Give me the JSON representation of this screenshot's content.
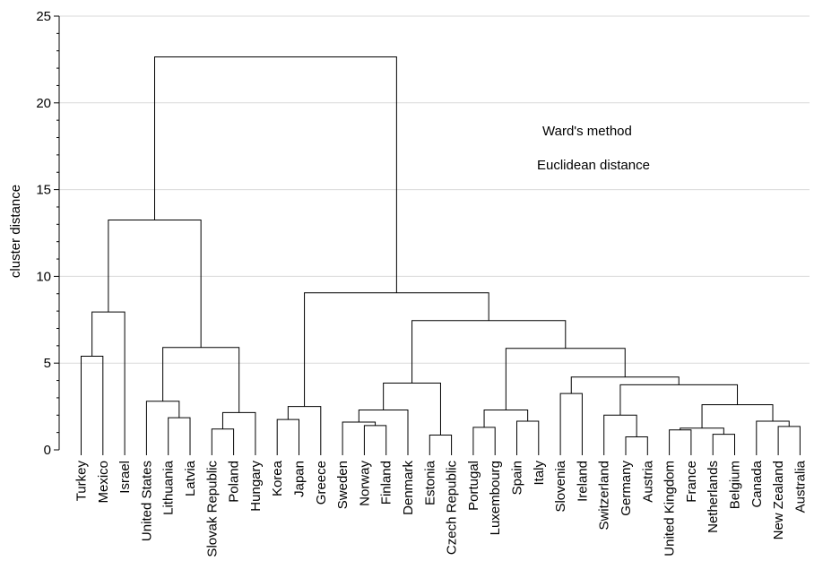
{
  "chart_data": {
    "type": "dendrogram",
    "ylabel": "cluster distance",
    "ylim": [
      0,
      25
    ],
    "yticks": [
      0,
      5,
      10,
      15,
      20,
      25
    ],
    "grid": true,
    "annotations": [
      "Ward's method",
      "Euclidean distance"
    ],
    "leaves": [
      "Turkey",
      "Mexico",
      "Israel",
      "United States",
      "Lithuania",
      "Latvia",
      "Slovak Republic",
      "Poland",
      "Hungary",
      "Korea",
      "Japan",
      "Greece",
      "Sweden",
      "Norway",
      "Finland",
      "Denmark",
      "Estonia",
      "Czech Republic",
      "Portugal",
      "Luxembourg",
      "Spain",
      "Italy",
      "Slovenia",
      "Ireland",
      "Switzerland",
      "Germany",
      "Austria",
      "United Kingdom",
      "France",
      "Netherlands",
      "Belgium",
      "Canada",
      "New Zealand",
      "Australia"
    ],
    "merges": [
      {
        "id": "a",
        "left": "Turkey",
        "right": "Mexico",
        "height": 5.4
      },
      {
        "id": "b",
        "left": "a",
        "right": "Israel",
        "height": 7.95
      },
      {
        "id": "c",
        "left": "Lithuania",
        "right": "Latvia",
        "height": 1.85
      },
      {
        "id": "d",
        "left": "United States",
        "right": "c",
        "height": 2.8
      },
      {
        "id": "e",
        "left": "Slovak Republic",
        "right": "Poland",
        "height": 1.2
      },
      {
        "id": "f",
        "left": "e",
        "right": "Hungary",
        "height": 2.15
      },
      {
        "id": "g",
        "left": "d",
        "right": "f",
        "height": 5.9
      },
      {
        "id": "h",
        "left": "b",
        "right": "g",
        "height": 13.25
      },
      {
        "id": "i",
        "left": "Korea",
        "right": "Japan",
        "height": 1.75
      },
      {
        "id": "j",
        "left": "i",
        "right": "Greece",
        "height": 2.5
      },
      {
        "id": "k",
        "left": "Norway",
        "right": "Finland",
        "height": 1.4
      },
      {
        "id": "l",
        "left": "Sweden",
        "right": "k",
        "height": 1.6
      },
      {
        "id": "m",
        "left": "l",
        "right": "Denmark",
        "height": 2.3
      },
      {
        "id": "n",
        "left": "Estonia",
        "right": "Czech Republic",
        "height": 0.85
      },
      {
        "id": "o",
        "left": "m",
        "right": "n",
        "height": 3.85
      },
      {
        "id": "p",
        "left": "Portugal",
        "right": "Luxembourg",
        "height": 1.3
      },
      {
        "id": "q",
        "left": "Spain",
        "right": "Italy",
        "height": 1.65
      },
      {
        "id": "r",
        "left": "p",
        "right": "q",
        "height": 2.3
      },
      {
        "id": "s",
        "left": "Slovenia",
        "right": "Ireland",
        "height": 3.25
      },
      {
        "id": "t",
        "left": "Germany",
        "right": "Austria",
        "height": 0.75
      },
      {
        "id": "u",
        "left": "Switzerland",
        "right": "t",
        "height": 2.0
      },
      {
        "id": "v",
        "left": "United Kingdom",
        "right": "France",
        "height": 1.15
      },
      {
        "id": "w",
        "left": "Netherlands",
        "right": "Belgium",
        "height": 0.9
      },
      {
        "id": "x",
        "left": "v",
        "right": "w",
        "height": 1.25
      },
      {
        "id": "y",
        "left": "New Zealand",
        "right": "Australia",
        "height": 1.35
      },
      {
        "id": "z",
        "left": "Canada",
        "right": "y",
        "height": 1.65
      },
      {
        "id": "aa",
        "left": "x",
        "right": "z",
        "height": 2.6
      },
      {
        "id": "ab",
        "left": "u",
        "right": "aa",
        "height": 3.75
      },
      {
        "id": "ac",
        "left": "s",
        "right": "ab",
        "height": 4.2
      },
      {
        "id": "ad",
        "left": "r",
        "right": "ac",
        "height": 5.85
      },
      {
        "id": "ae",
        "left": "o",
        "right": "ad",
        "height": 7.45
      },
      {
        "id": "af",
        "left": "j",
        "right": "ae",
        "height": 9.05
      },
      {
        "id": "ag",
        "left": "h",
        "right": "af",
        "height": 22.65
      }
    ]
  }
}
